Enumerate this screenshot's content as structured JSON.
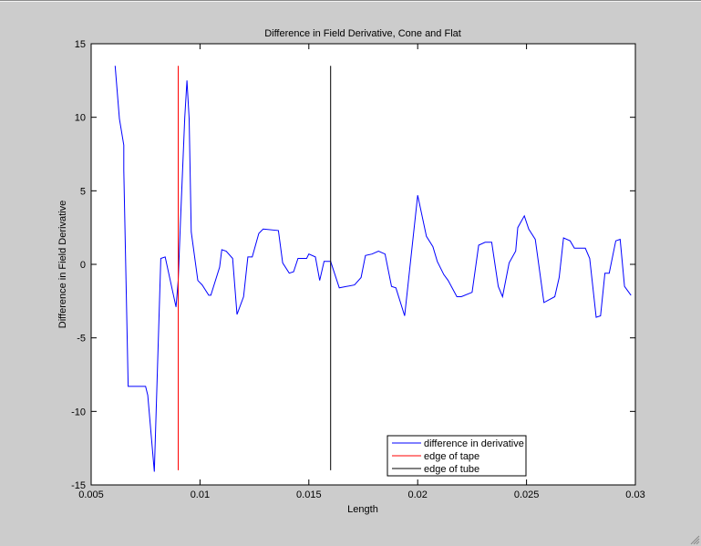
{
  "figure": {
    "background": "#cccccc",
    "axes_background": "#ffffff"
  },
  "chart_data": {
    "type": "line",
    "title": "Difference in Field Derivative, Cone and Flat",
    "xlabel": "Length",
    "ylabel": "Difference in Field Derivative",
    "xlim": [
      0.005,
      0.03
    ],
    "ylim": [
      -15,
      15
    ],
    "xticks": [
      0.005,
      0.01,
      0.015,
      0.02,
      0.025,
      0.03
    ],
    "xtick_labels": [
      "0.005",
      "0.01",
      "0.015",
      "0.02",
      "0.025",
      "0.03"
    ],
    "yticks": [
      -15,
      -10,
      -5,
      0,
      5,
      10,
      15
    ],
    "ytick_labels": [
      "-15",
      "-10",
      "-5",
      "0",
      "5",
      "10",
      "15"
    ],
    "grid": false,
    "legend_position": "lower right (inside)",
    "series": [
      {
        "name": "difference in derivative",
        "color": "#0000ff",
        "kind": "line",
        "x": [
          0.0061,
          0.0063,
          0.0065,
          0.0065,
          0.0067,
          0.0075,
          0.0076,
          0.0079,
          0.0082,
          0.0084,
          0.0089,
          0.009,
          0.0091,
          0.0093,
          0.0094,
          0.0095,
          0.0096,
          0.0099,
          0.0101,
          0.0104,
          0.0105,
          0.0109,
          0.011,
          0.0112,
          0.0115,
          0.0117,
          0.012,
          0.0122,
          0.0124,
          0.0127,
          0.0129,
          0.0136,
          0.0138,
          0.0141,
          0.0143,
          0.0145,
          0.0149,
          0.015,
          0.0153,
          0.0155,
          0.0157,
          0.016,
          0.0164,
          0.0171,
          0.0174,
          0.0176,
          0.0179,
          0.0182,
          0.0185,
          0.0188,
          0.019,
          0.0194,
          0.02,
          0.0204,
          0.0207,
          0.0209,
          0.0212,
          0.0214,
          0.0218,
          0.022,
          0.0225,
          0.0228,
          0.0231,
          0.0234,
          0.0237,
          0.0239,
          0.0242,
          0.0245,
          0.0246,
          0.0249,
          0.0251,
          0.0254,
          0.0258,
          0.0263,
          0.0265,
          0.0267,
          0.027,
          0.0272,
          0.0277,
          0.0279,
          0.0282,
          0.0284,
          0.0286,
          0.0288,
          0.0291,
          0.0293,
          0.0295,
          0.0298
        ],
        "y": [
          13.5,
          9.9,
          8.1,
          6.4,
          -8.3,
          -8.3,
          -8.9,
          -14.1,
          0.4,
          0.5,
          -2.9,
          -1.1,
          2.8,
          10.0,
          12.5,
          9.9,
          2.2,
          -1.1,
          -1.4,
          -2.1,
          -2.1,
          -0.2,
          1.0,
          0.9,
          0.4,
          -3.4,
          -2.2,
          0.5,
          0.5,
          2.1,
          2.4,
          2.3,
          0.1,
          -0.6,
          -0.5,
          0.4,
          0.4,
          0.7,
          0.5,
          -1.1,
          0.2,
          0.2,
          -1.6,
          -1.4,
          -0.9,
          0.6,
          0.7,
          0.9,
          0.7,
          -1.5,
          -1.6,
          -3.5,
          4.7,
          1.9,
          1.2,
          0.2,
          -0.7,
          -1.1,
          -2.2,
          -2.2,
          -1.9,
          1.3,
          1.5,
          1.5,
          -1.5,
          -2.2,
          0.1,
          0.9,
          2.5,
          3.3,
          2.4,
          1.7,
          -2.6,
          -2.2,
          -0.9,
          1.8,
          1.6,
          1.1,
          1.1,
          0.4,
          -3.6,
          -3.5,
          -0.6,
          -0.6,
          1.6,
          1.7,
          -1.5,
          -2.1
        ]
      },
      {
        "name": "edge of tape",
        "color": "#ff0000",
        "kind": "vline",
        "x": [
          0.009,
          0.009
        ],
        "y": [
          13.5,
          -14
        ]
      },
      {
        "name": "edge of tube",
        "color": "#000000",
        "kind": "vline",
        "x": [
          0.016,
          0.016
        ],
        "y": [
          13.5,
          -14
        ]
      }
    ]
  }
}
